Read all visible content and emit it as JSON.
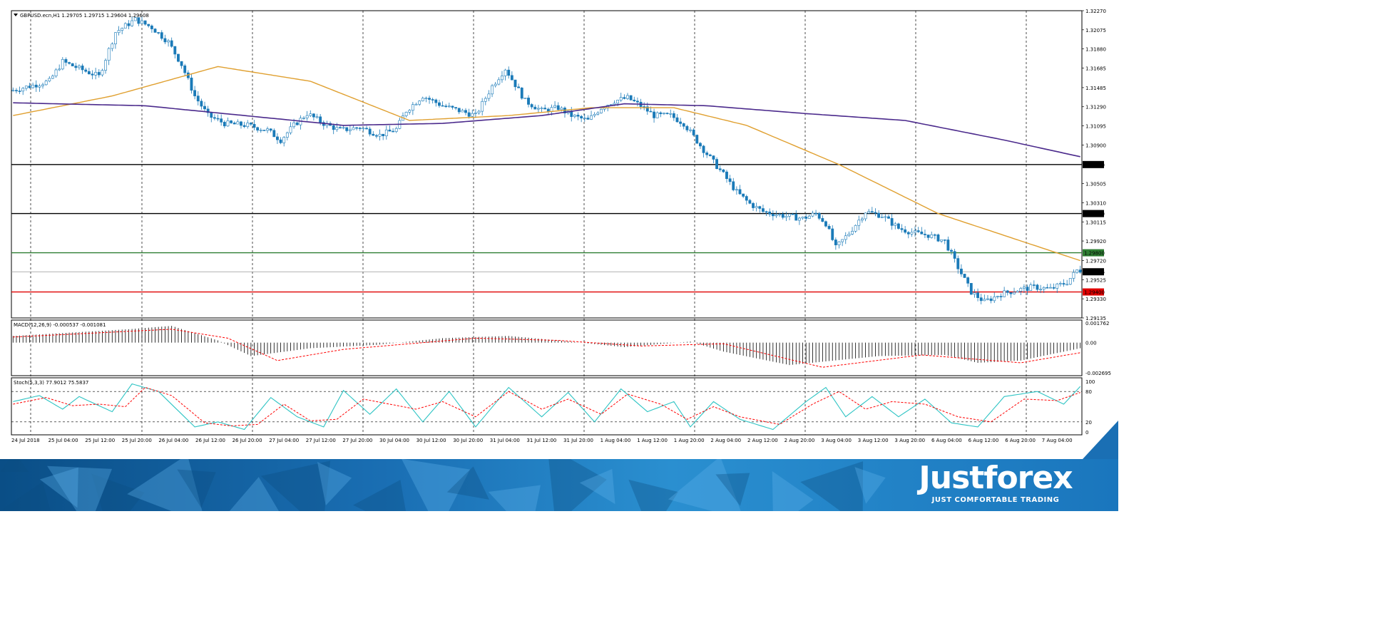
{
  "header": {
    "symbol_line": "GBPUSD.ecn,H1  1.29705 1.29715 1.29604 1.29608"
  },
  "macd": {
    "label": "MACD(12,26,9) -0.000537 -0.001081",
    "ticks": [
      "0.001762",
      "0.00",
      "-0.002695"
    ]
  },
  "stoch": {
    "label": "Stoch(5,3,3) 77.9012 75.5837",
    "ticks": [
      "100",
      "80",
      "20",
      "0"
    ]
  },
  "branding": {
    "logo": "Justforex",
    "tagline": "JUST COMFORTABLE TRADING"
  },
  "colors": {
    "bull": "#1a7ab8",
    "bear": "#1a7ab8",
    "ma_fast": "#e0a030",
    "ma_slow": "#4b2a8c",
    "macd_signal": "#ff0000",
    "stoch_main": "#2ec4c4",
    "stoch_signal": "#ff0000"
  },
  "chart_data": {
    "type": "candlestick",
    "price_axis": [
      "1.32270",
      "1.32075",
      "1.31880",
      "1.31685",
      "1.31485",
      "1.31290",
      "1.31095",
      "1.30900",
      "1.30505",
      "1.30310",
      "1.30115",
      "1.29920",
      "1.29720",
      "1.29525",
      "1.29330",
      "1.29135"
    ],
    "time_labels": [
      "24 Jul 2018",
      "25 Jul 04:00",
      "25 Jul 12:00",
      "25 Jul 20:00",
      "26 Jul 04:00",
      "26 Jul 12:00",
      "26 Jul 20:00",
      "27 Jul 04:00",
      "27 Jul 12:00",
      "27 Jul 20:00",
      "30 Jul 04:00",
      "30 Jul 12:00",
      "30 Jul 20:00",
      "31 Jul 04:00",
      "31 Jul 12:00",
      "31 Jul 20:00",
      "1 Aug 04:00",
      "1 Aug 12:00",
      "1 Aug 20:00",
      "2 Aug 04:00",
      "2 Aug 12:00",
      "2 Aug 20:00",
      "3 Aug 04:00",
      "3 Aug 12:00",
      "3 Aug 20:00",
      "6 Aug 04:00",
      "6 Aug 12:00",
      "6 Aug 20:00",
      "7 Aug 04:00"
    ],
    "levels": [
      {
        "value": 1.307,
        "label": "1.30700",
        "color": "#000000"
      },
      {
        "value": 1.302,
        "label": "1.30200",
        "color": "#000000"
      },
      {
        "value": 1.298,
        "label": "1.29800",
        "color": "#2e7d32"
      },
      {
        "value": 1.29606,
        "label": "1.29606",
        "color": "#999999"
      },
      {
        "value": 1.294,
        "label": "1.29400",
        "color": "#e00000"
      }
    ],
    "price_path": [
      [
        0,
        1.3145
      ],
      [
        6,
        1.315
      ],
      [
        12,
        1.3155
      ],
      [
        16,
        1.3175
      ],
      [
        21,
        1.3168
      ],
      [
        27,
        1.316
      ],
      [
        32,
        1.3205
      ],
      [
        38,
        1.3218
      ],
      [
        43,
        1.321
      ],
      [
        48,
        1.3195
      ],
      [
        52,
        1.3172
      ],
      [
        56,
        1.314
      ],
      [
        60,
        1.312
      ],
      [
        65,
        1.3112
      ],
      [
        72,
        1.311
      ],
      [
        78,
        1.3105
      ],
      [
        82,
        1.3095
      ],
      [
        86,
        1.311
      ],
      [
        90,
        1.3122
      ],
      [
        95,
        1.3112
      ],
      [
        100,
        1.3105
      ],
      [
        106,
        1.3108
      ],
      [
        112,
        1.31
      ],
      [
        117,
        1.3106
      ],
      [
        120,
        1.3125
      ],
      [
        125,
        1.314
      ],
      [
        131,
        1.313
      ],
      [
        136,
        1.3125
      ],
      [
        141,
        1.312
      ],
      [
        146,
        1.315
      ],
      [
        150,
        1.3168
      ],
      [
        156,
        1.3135
      ],
      [
        161,
        1.3125
      ],
      [
        166,
        1.3128
      ],
      [
        170,
        1.312
      ],
      [
        175,
        1.3115
      ],
      [
        179,
        1.3128
      ],
      [
        183,
        1.3135
      ],
      [
        187,
        1.3138
      ],
      [
        191,
        1.313
      ],
      [
        195,
        1.312
      ],
      [
        200,
        1.312
      ],
      [
        204,
        1.3112
      ],
      [
        210,
        1.3085
      ],
      [
        216,
        1.306
      ],
      [
        220,
        1.3042
      ],
      [
        224,
        1.303
      ],
      [
        228,
        1.3022
      ],
      [
        234,
        1.3018
      ],
      [
        240,
        1.3015
      ],
      [
        244,
        1.302
      ],
      [
        247,
        1.301
      ],
      [
        250,
        1.2985
      ],
      [
        254,
        1.3
      ],
      [
        259,
        1.3022
      ],
      [
        264,
        1.3018
      ],
      [
        269,
        1.3005
      ],
      [
        274,
        1.3
      ],
      [
        278,
        1.2998
      ],
      [
        283,
        1.2992
      ],
      [
        287,
        1.2965
      ],
      [
        291,
        1.294
      ],
      [
        295,
        1.293
      ],
      [
        300,
        1.2938
      ],
      [
        305,
        1.2942
      ],
      [
        310,
        1.2945
      ],
      [
        315,
        1.2943
      ],
      [
        320,
        1.295
      ],
      [
        323,
        1.2962
      ]
    ],
    "ma_fast": [
      [
        0,
        1.312
      ],
      [
        30,
        1.314
      ],
      [
        62,
        1.317
      ],
      [
        90,
        1.3155
      ],
      [
        120,
        1.3115
      ],
      [
        150,
        1.312
      ],
      [
        175,
        1.3128
      ],
      [
        200,
        1.3128
      ],
      [
        222,
        1.311
      ],
      [
        250,
        1.307
      ],
      [
        280,
        1.302
      ],
      [
        323,
        1.2972
      ]
    ],
    "ma_slow": [
      [
        0,
        1.3133
      ],
      [
        40,
        1.313
      ],
      [
        70,
        1.312
      ],
      [
        100,
        1.311
      ],
      [
        130,
        1.3112
      ],
      [
        160,
        1.312
      ],
      [
        185,
        1.3132
      ],
      [
        210,
        1.313
      ],
      [
        240,
        1.3122
      ],
      [
        270,
        1.3115
      ],
      [
        300,
        1.3095
      ],
      [
        323,
        1.3078
      ]
    ],
    "macd_histogram_shape": [
      [
        0,
        0.0006
      ],
      [
        35,
        0.0012
      ],
      [
        48,
        0.0015
      ],
      [
        62,
        0.0002
      ],
      [
        72,
        -0.0012
      ],
      [
        90,
        -0.0005
      ],
      [
        110,
        -0.0002
      ],
      [
        130,
        0.0004
      ],
      [
        150,
        0.0006
      ],
      [
        165,
        0.0002
      ],
      [
        185,
        -0.0004
      ],
      [
        205,
        0.0001
      ],
      [
        215,
        -0.0008
      ],
      [
        235,
        -0.002
      ],
      [
        262,
        -0.0012
      ],
      [
        282,
        -0.0011
      ],
      [
        292,
        -0.0018
      ],
      [
        305,
        -0.0016
      ],
      [
        323,
        -0.0005
      ]
    ],
    "macd_signal_shape": [
      [
        0,
        0.0005
      ],
      [
        48,
        0.0012
      ],
      [
        65,
        0.0004
      ],
      [
        80,
        -0.0016
      ],
      [
        100,
        -0.0006
      ],
      [
        140,
        0.0004
      ],
      [
        165,
        0.0002
      ],
      [
        190,
        -0.0003
      ],
      [
        215,
        -0.0001
      ],
      [
        245,
        -0.0022
      ],
      [
        275,
        -0.0011
      ],
      [
        305,
        -0.0018
      ],
      [
        323,
        -0.0009
      ]
    ],
    "stoch_main_shape": [
      [
        0,
        60
      ],
      [
        8,
        72
      ],
      [
        15,
        45
      ],
      [
        20,
        70
      ],
      [
        30,
        40
      ],
      [
        36,
        95
      ],
      [
        44,
        80
      ],
      [
        55,
        10
      ],
      [
        62,
        20
      ],
      [
        70,
        5
      ],
      [
        78,
        68
      ],
      [
        86,
        30
      ],
      [
        94,
        10
      ],
      [
        100,
        82
      ],
      [
        108,
        35
      ],
      [
        116,
        85
      ],
      [
        124,
        20
      ],
      [
        132,
        80
      ],
      [
        140,
        10
      ],
      [
        150,
        88
      ],
      [
        160,
        30
      ],
      [
        168,
        78
      ],
      [
        176,
        20
      ],
      [
        184,
        85
      ],
      [
        192,
        40
      ],
      [
        200,
        60
      ],
      [
        205,
        10
      ],
      [
        212,
        60
      ],
      [
        220,
        25
      ],
      [
        230,
        5
      ],
      [
        240,
        60
      ],
      [
        246,
        88
      ],
      [
        252,
        30
      ],
      [
        260,
        70
      ],
      [
        268,
        30
      ],
      [
        276,
        65
      ],
      [
        284,
        18
      ],
      [
        292,
        10
      ],
      [
        300,
        70
      ],
      [
        310,
        80
      ],
      [
        318,
        55
      ],
      [
        323,
        90
      ]
    ],
    "stoch_signal_shape": [
      [
        0,
        55
      ],
      [
        10,
        68
      ],
      [
        18,
        52
      ],
      [
        26,
        55
      ],
      [
        34,
        50
      ],
      [
        40,
        88
      ],
      [
        48,
        72
      ],
      [
        58,
        18
      ],
      [
        66,
        12
      ],
      [
        74,
        15
      ],
      [
        82,
        55
      ],
      [
        90,
        22
      ],
      [
        98,
        25
      ],
      [
        106,
        65
      ],
      [
        114,
        55
      ],
      [
        122,
        45
      ],
      [
        130,
        60
      ],
      [
        140,
        30
      ],
      [
        150,
        80
      ],
      [
        160,
        45
      ],
      [
        168,
        65
      ],
      [
        178,
        35
      ],
      [
        186,
        75
      ],
      [
        196,
        55
      ],
      [
        204,
        25
      ],
      [
        212,
        50
      ],
      [
        220,
        30
      ],
      [
        232,
        15
      ],
      [
        242,
        55
      ],
      [
        250,
        80
      ],
      [
        258,
        45
      ],
      [
        266,
        60
      ],
      [
        276,
        55
      ],
      [
        286,
        30
      ],
      [
        296,
        20
      ],
      [
        306,
        65
      ],
      [
        316,
        62
      ],
      [
        323,
        78
      ]
    ]
  }
}
